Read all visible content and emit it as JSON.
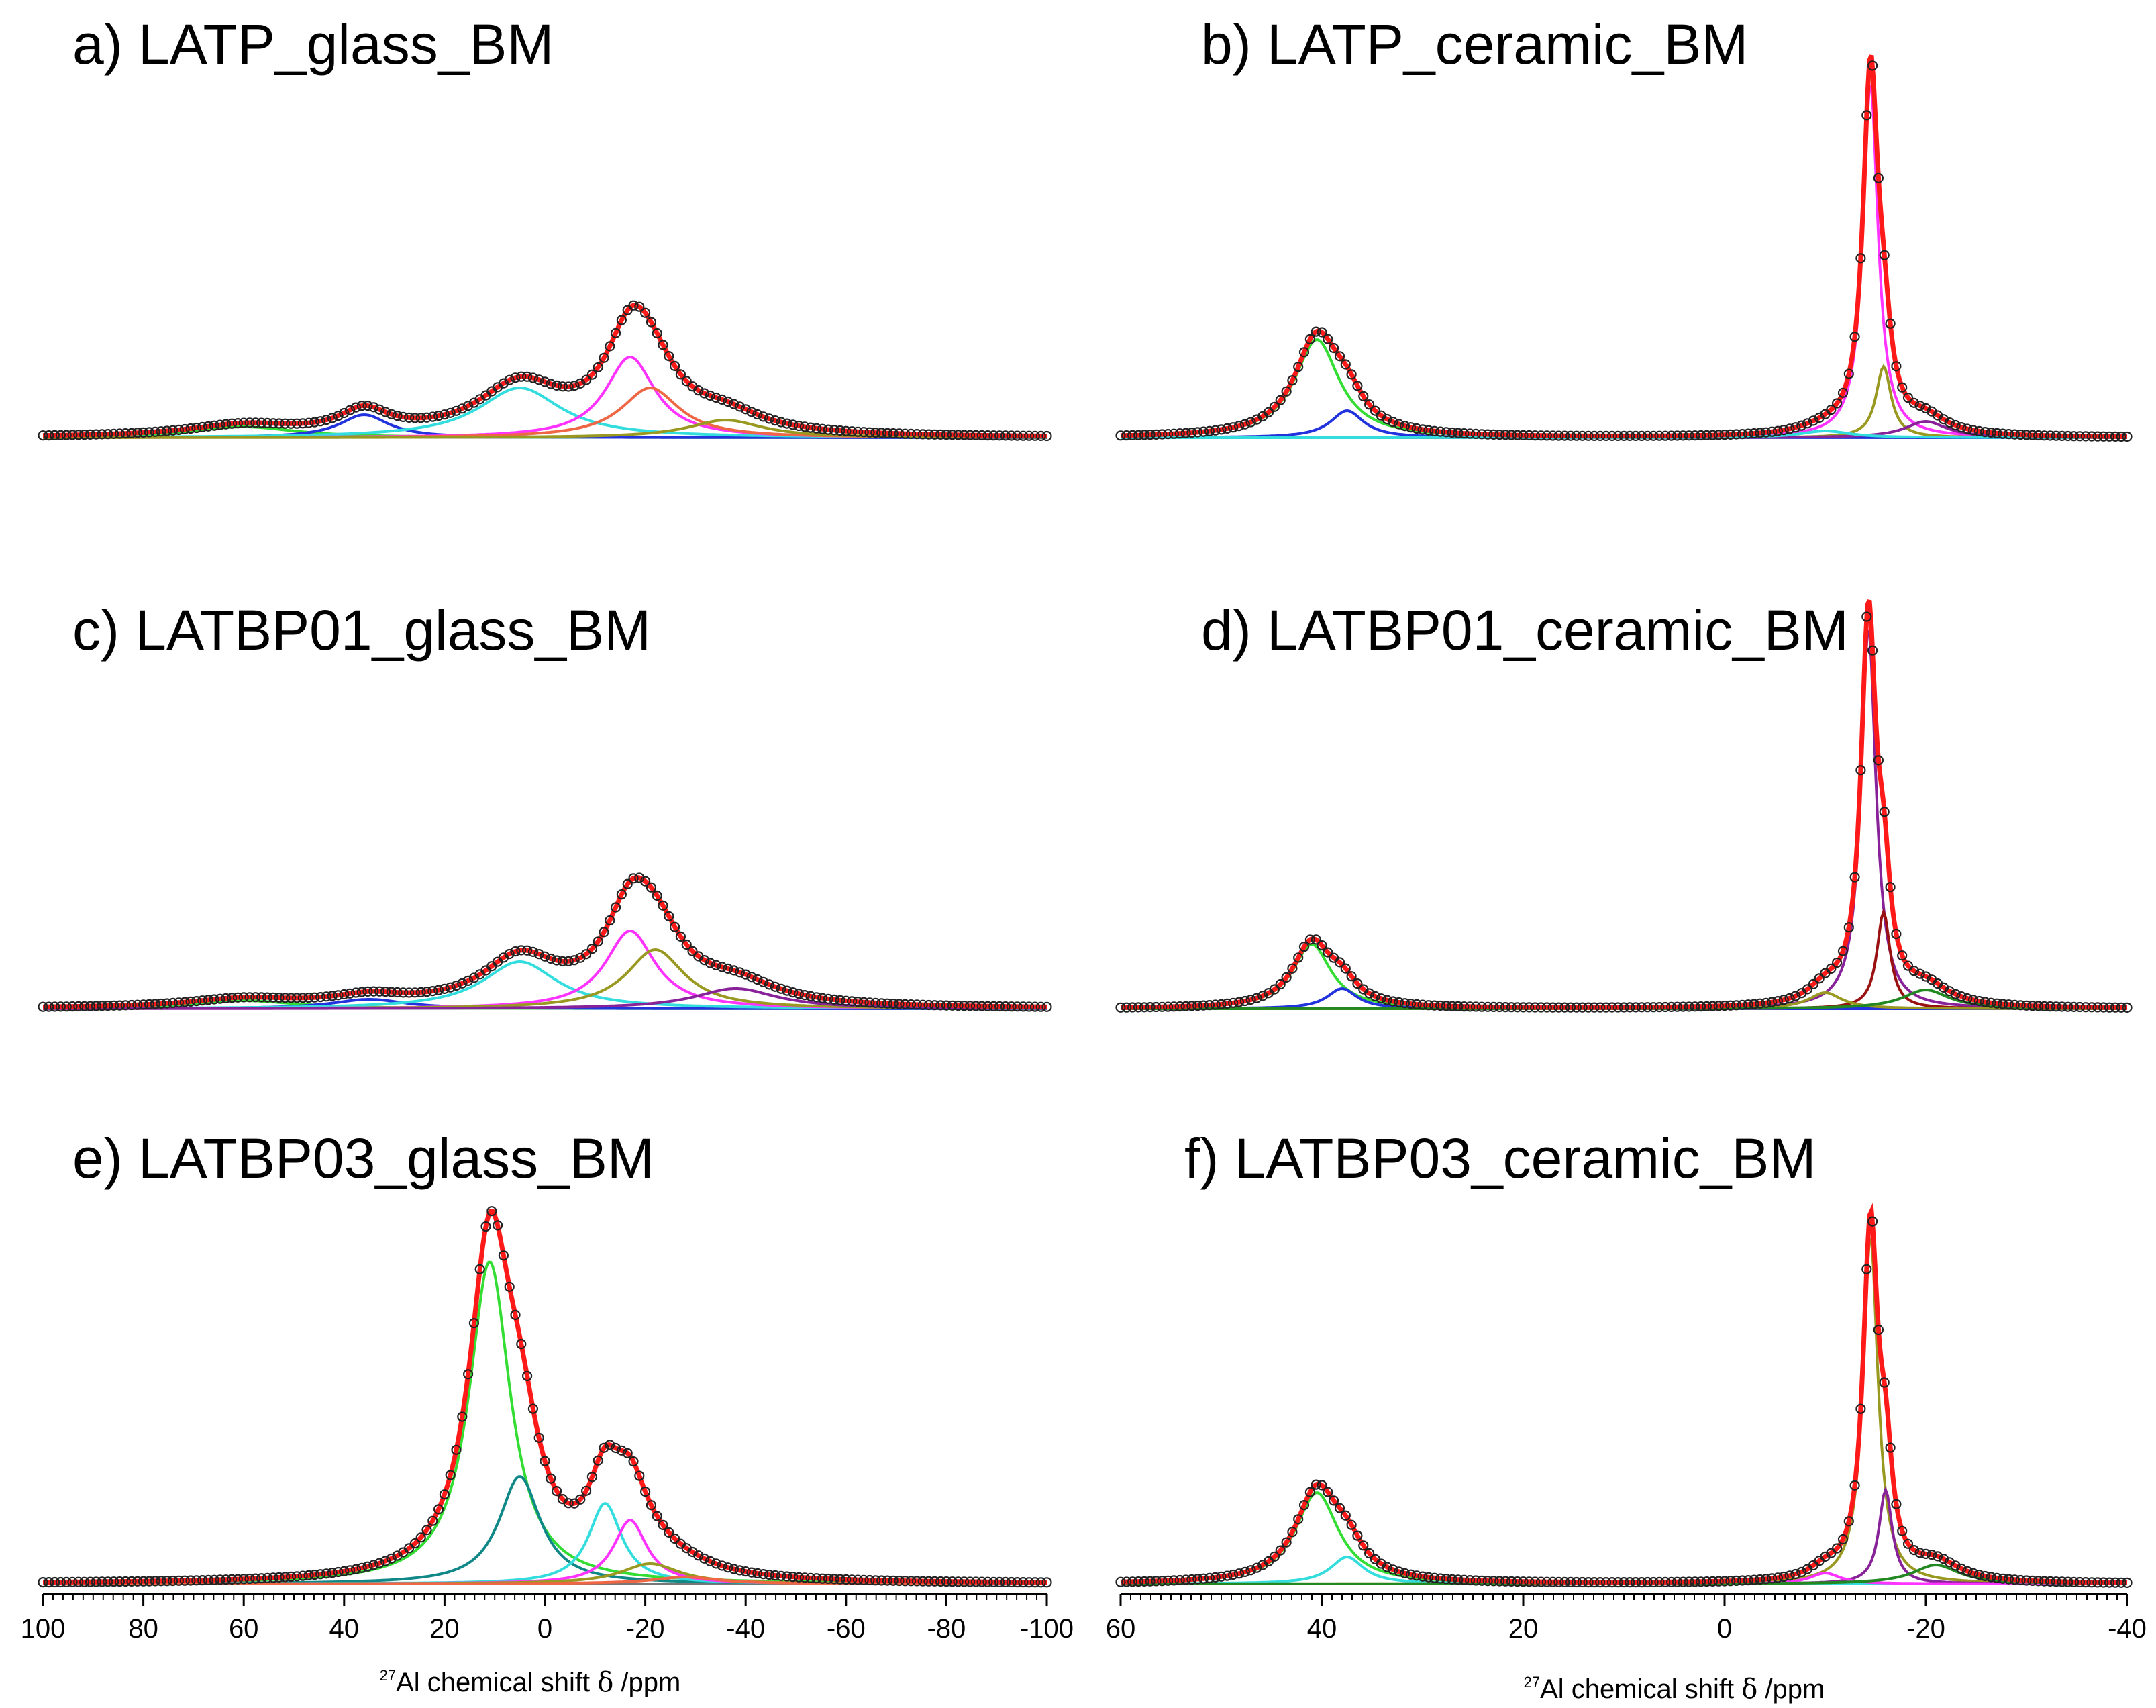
{
  "chart_data": {
    "type": "line",
    "description_axis": {
      "left_xlim": [
        100,
        -100
      ],
      "right_xlim": [
        60,
        -40
      ],
      "left_ticks": [
        "100",
        "80",
        "60",
        "40",
        "20",
        "0",
        "-20",
        "-40",
        "-60",
        "-80",
        "-100"
      ],
      "right_ticks": [
        "60",
        "40",
        "20",
        "0",
        "-20",
        "-40"
      ],
      "xlabel_sup": "27",
      "xlabel_main": "Al chemical shift ",
      "xlabel_delta": "δ",
      "xlabel_unit": " /ppm"
    },
    "colors": {
      "fit": "#ff1a1a",
      "data_marker": "#222222",
      "green": "#33dd33",
      "blue": "#2233dd",
      "cyan": "#33dddd",
      "magenta": "#ff33ff",
      "orange": "#ee6644",
      "olive": "#999922",
      "purple": "#882299",
      "teal": "#118888",
      "darkred": "#991111",
      "darkgreen": "#228822"
    },
    "panels": [
      {
        "label": "a) LATP_glass_BM",
        "column": "left",
        "ymax": 1.0,
        "peaks": [
          {
            "color": "green",
            "center": 60,
            "height": 0.08,
            "width": 13
          },
          {
            "color": "blue",
            "center": 36,
            "height": 0.17,
            "width": 6
          },
          {
            "color": "cyan",
            "center": 5,
            "height": 0.37,
            "width": 10
          },
          {
            "color": "magenta",
            "center": -17,
            "height": 0.6,
            "width": 6
          },
          {
            "color": "orange",
            "center": -21,
            "height": 0.37,
            "width": 7
          },
          {
            "color": "olive",
            "center": -36,
            "height": 0.13,
            "width": 9
          }
        ]
      },
      {
        "label": "b) LATP_ceramic_BM",
        "column": "right",
        "ymax": 3.0,
        "peaks": [
          {
            "color": "green",
            "center": 40.5,
            "height": 0.73,
            "width": 2.7
          },
          {
            "color": "blue",
            "center": 37.5,
            "height": 0.2,
            "width": 2
          },
          {
            "color": "magenta",
            "center": -14.5,
            "height": 2.65,
            "width": 0.9
          },
          {
            "color": "olive",
            "center": -15.8,
            "height": 0.53,
            "width": 0.9
          },
          {
            "color": "purple",
            "center": -20,
            "height": 0.12,
            "width": 2.5
          },
          {
            "color": "cyan",
            "center": -10,
            "height": 0.05,
            "width": 3
          }
        ]
      },
      {
        "label": "c) LATBP01_glass_BM",
        "column": "left",
        "ymax": 1.0,
        "peaks": [
          {
            "color": "green",
            "center": 60,
            "height": 0.06,
            "width": 13
          },
          {
            "color": "blue",
            "center": 35,
            "height": 0.07,
            "width": 9
          },
          {
            "color": "cyan",
            "center": 5,
            "height": 0.35,
            "width": 9
          },
          {
            "color": "magenta",
            "center": -17,
            "height": 0.58,
            "width": 6
          },
          {
            "color": "olive",
            "center": -22,
            "height": 0.44,
            "width": 7
          },
          {
            "color": "purple",
            "center": -38,
            "height": 0.15,
            "width": 10
          }
        ]
      },
      {
        "label": "d) LATBP01_ceramic_BM",
        "column": "right",
        "ymax": 3.0,
        "peaks": [
          {
            "color": "green",
            "center": 41,
            "height": 0.48,
            "width": 2.3
          },
          {
            "color": "blue",
            "center": 38,
            "height": 0.15,
            "width": 1.8
          },
          {
            "color": "purple",
            "center": -14.3,
            "height": 2.85,
            "width": 0.9
          },
          {
            "color": "darkred",
            "center": -15.8,
            "height": 0.72,
            "width": 0.8
          },
          {
            "color": "olive",
            "center": -10,
            "height": 0.12,
            "width": 2
          },
          {
            "color": "darkgreen",
            "center": -20,
            "height": 0.14,
            "width": 2.8
          }
        ]
      },
      {
        "label": "e) LATBP03_glass_BM",
        "column": "left",
        "ymax": 1.0,
        "peaks": [
          {
            "color": "green",
            "center": 11,
            "height": 0.96,
            "width": 5
          },
          {
            "color": "teal",
            "center": 5,
            "height": 0.32,
            "width": 5
          },
          {
            "color": "cyan",
            "center": -12,
            "height": 0.24,
            "width": 4
          },
          {
            "color": "magenta",
            "center": -17,
            "height": 0.19,
            "width": 4
          },
          {
            "color": "olive",
            "center": -21,
            "height": 0.06,
            "width": 7
          },
          {
            "color": "orange",
            "center": -28,
            "height": 0.02,
            "width": 8
          }
        ]
      },
      {
        "label": "f) LATBP03_ceramic_BM",
        "column": "right",
        "ymax": 3.0,
        "peaks": [
          {
            "color": "green",
            "center": 40.5,
            "height": 0.68,
            "width": 2.6
          },
          {
            "color": "cyan",
            "center": 37.5,
            "height": 0.2,
            "width": 2
          },
          {
            "color": "olive",
            "center": -14.5,
            "height": 2.6,
            "width": 0.9
          },
          {
            "color": "purple",
            "center": -16,
            "height": 0.7,
            "width": 0.8
          },
          {
            "color": "magenta",
            "center": -10,
            "height": 0.08,
            "width": 1.8
          },
          {
            "color": "darkgreen",
            "center": -21,
            "height": 0.14,
            "width": 2.8
          }
        ]
      }
    ]
  }
}
